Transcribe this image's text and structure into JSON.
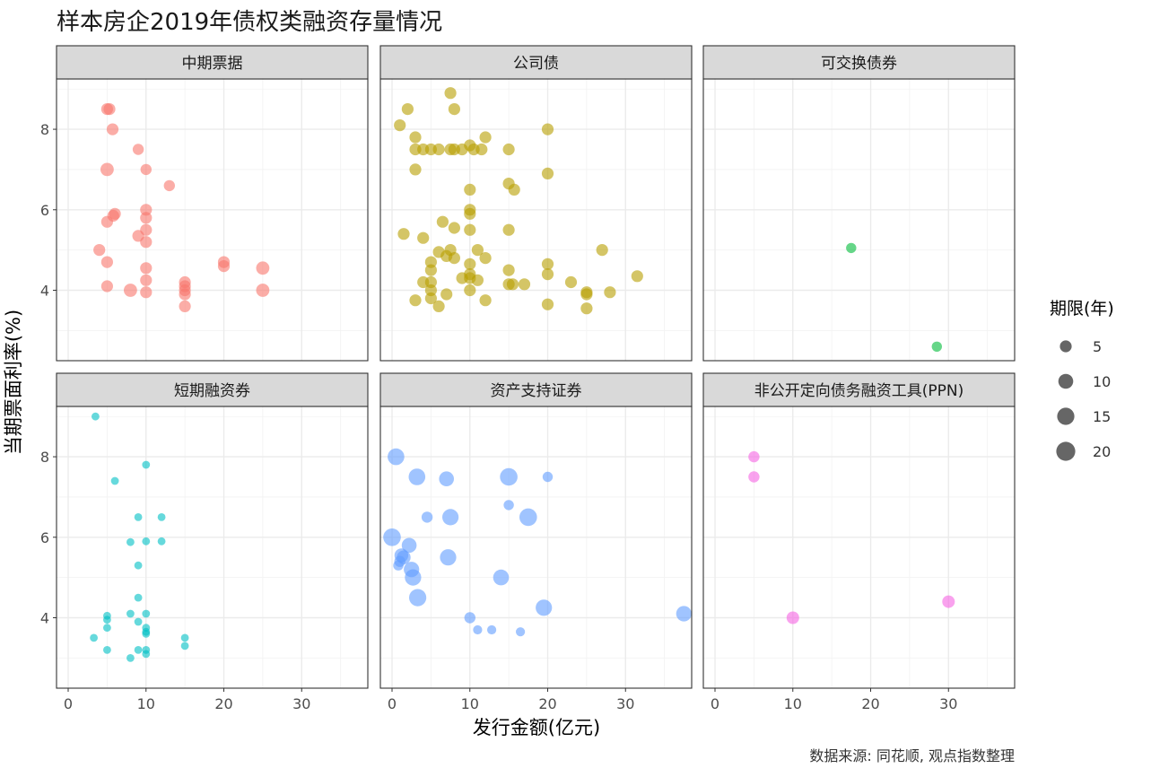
{
  "chart_data": {
    "type": "scatter",
    "title": "样本房企2019年债权类融资存量情况",
    "xlabel": "发行金额(亿元)",
    "ylabel": "当期票面利率(%)",
    "caption": "数据来源: 同花顺, 观点指数整理",
    "size_legend": {
      "title": "期限(年)",
      "values": [
        5,
        10,
        15,
        20
      ]
    },
    "x_ticks": [
      0,
      10,
      20,
      30
    ],
    "y_ticks": [
      4,
      6,
      8
    ],
    "xlim": [
      -1.5,
      38.5
    ],
    "ylim": [
      2.25,
      9.25
    ],
    "grid": true,
    "facets": [
      {
        "label": "中期票据",
        "color": "#F8766D",
        "points": [
          {
            "x": 5,
            "y": 8.5,
            "s": 5
          },
          {
            "x": 5.3,
            "y": 8.5,
            "s": 5
          },
          {
            "x": 5.7,
            "y": 8.0,
            "s": 5
          },
          {
            "x": 9,
            "y": 7.5,
            "s": 4
          },
          {
            "x": 5,
            "y": 7.0,
            "s": 7
          },
          {
            "x": 10,
            "y": 7.0,
            "s": 4
          },
          {
            "x": 13,
            "y": 6.6,
            "s": 4
          },
          {
            "x": 10,
            "y": 6.0,
            "s": 5
          },
          {
            "x": 6,
            "y": 5.9,
            "s": 5
          },
          {
            "x": 5.8,
            "y": 5.85,
            "s": 5
          },
          {
            "x": 10,
            "y": 5.8,
            "s": 5
          },
          {
            "x": 5,
            "y": 5.7,
            "s": 5
          },
          {
            "x": 10,
            "y": 5.5,
            "s": 5
          },
          {
            "x": 9,
            "y": 5.35,
            "s": 5
          },
          {
            "x": 10,
            "y": 5.2,
            "s": 5
          },
          {
            "x": 4,
            "y": 5.0,
            "s": 5
          },
          {
            "x": 5,
            "y": 4.7,
            "s": 5
          },
          {
            "x": 20,
            "y": 4.7,
            "s": 5
          },
          {
            "x": 20,
            "y": 4.6,
            "s": 5
          },
          {
            "x": 10,
            "y": 4.55,
            "s": 5
          },
          {
            "x": 25,
            "y": 4.55,
            "s": 7
          },
          {
            "x": 10,
            "y": 4.25,
            "s": 5
          },
          {
            "x": 15,
            "y": 4.2,
            "s": 5
          },
          {
            "x": 15,
            "y": 4.1,
            "s": 5
          },
          {
            "x": 5,
            "y": 4.1,
            "s": 5
          },
          {
            "x": 15,
            "y": 4.0,
            "s": 5
          },
          {
            "x": 8,
            "y": 4.0,
            "s": 7
          },
          {
            "x": 25,
            "y": 4.0,
            "s": 7
          },
          {
            "x": 10,
            "y": 3.95,
            "s": 5
          },
          {
            "x": 15,
            "y": 3.9,
            "s": 5
          },
          {
            "x": 15,
            "y": 3.6,
            "s": 5
          }
        ]
      },
      {
        "label": "公司债",
        "color": "#B79F00",
        "points": [
          {
            "x": 7.5,
            "y": 8.9,
            "s": 5
          },
          {
            "x": 2,
            "y": 8.5,
            "s": 5
          },
          {
            "x": 8,
            "y": 8.5,
            "s": 5
          },
          {
            "x": 1,
            "y": 8.1,
            "s": 5
          },
          {
            "x": 20,
            "y": 8.0,
            "s": 5
          },
          {
            "x": 3,
            "y": 7.8,
            "s": 5
          },
          {
            "x": 12,
            "y": 7.8,
            "s": 5
          },
          {
            "x": 10,
            "y": 7.6,
            "s": 5
          },
          {
            "x": 3,
            "y": 7.5,
            "s": 5
          },
          {
            "x": 4,
            "y": 7.5,
            "s": 5
          },
          {
            "x": 5,
            "y": 7.5,
            "s": 5
          },
          {
            "x": 6,
            "y": 7.5,
            "s": 5
          },
          {
            "x": 7.5,
            "y": 7.5,
            "s": 5
          },
          {
            "x": 8,
            "y": 7.5,
            "s": 5
          },
          {
            "x": 9,
            "y": 7.5,
            "s": 5
          },
          {
            "x": 10.5,
            "y": 7.5,
            "s": 5
          },
          {
            "x": 11.5,
            "y": 7.5,
            "s": 5
          },
          {
            "x": 15,
            "y": 7.5,
            "s": 5
          },
          {
            "x": 3,
            "y": 7.0,
            "s": 5
          },
          {
            "x": 20,
            "y": 6.9,
            "s": 5
          },
          {
            "x": 15,
            "y": 6.65,
            "s": 5
          },
          {
            "x": 10,
            "y": 6.5,
            "s": 5
          },
          {
            "x": 15.7,
            "y": 6.5,
            "s": 5
          },
          {
            "x": 10,
            "y": 6.0,
            "s": 5
          },
          {
            "x": 10,
            "y": 5.9,
            "s": 5
          },
          {
            "x": 6.5,
            "y": 5.7,
            "s": 5
          },
          {
            "x": 8,
            "y": 5.55,
            "s": 5
          },
          {
            "x": 10,
            "y": 5.5,
            "s": 5
          },
          {
            "x": 15,
            "y": 5.5,
            "s": 5
          },
          {
            "x": 1.5,
            "y": 5.4,
            "s": 5
          },
          {
            "x": 4,
            "y": 5.3,
            "s": 5
          },
          {
            "x": 11,
            "y": 5.0,
            "s": 5
          },
          {
            "x": 7.5,
            "y": 5.0,
            "s": 5
          },
          {
            "x": 27,
            "y": 5.0,
            "s": 5
          },
          {
            "x": 6,
            "y": 4.95,
            "s": 5
          },
          {
            "x": 7,
            "y": 4.85,
            "s": 5
          },
          {
            "x": 8,
            "y": 4.8,
            "s": 5
          },
          {
            "x": 12,
            "y": 4.8,
            "s": 5
          },
          {
            "x": 5,
            "y": 4.7,
            "s": 5
          },
          {
            "x": 10,
            "y": 4.65,
            "s": 5
          },
          {
            "x": 20,
            "y": 4.65,
            "s": 5
          },
          {
            "x": 5,
            "y": 4.5,
            "s": 5
          },
          {
            "x": 15,
            "y": 4.5,
            "s": 5
          },
          {
            "x": 10,
            "y": 4.4,
            "s": 5
          },
          {
            "x": 20,
            "y": 4.4,
            "s": 5
          },
          {
            "x": 31.5,
            "y": 4.35,
            "s": 5
          },
          {
            "x": 10,
            "y": 4.3,
            "s": 5
          },
          {
            "x": 9,
            "y": 4.3,
            "s": 5
          },
          {
            "x": 11,
            "y": 4.25,
            "s": 5
          },
          {
            "x": 5,
            "y": 4.2,
            "s": 5
          },
          {
            "x": 4,
            "y": 4.2,
            "s": 5
          },
          {
            "x": 23,
            "y": 4.2,
            "s": 5
          },
          {
            "x": 15,
            "y": 4.15,
            "s": 5
          },
          {
            "x": 15.5,
            "y": 4.15,
            "s": 5
          },
          {
            "x": 17,
            "y": 4.15,
            "s": 5
          },
          {
            "x": 10,
            "y": 4.0,
            "s": 5
          },
          {
            "x": 5,
            "y": 4.0,
            "s": 5
          },
          {
            "x": 25,
            "y": 3.95,
            "s": 5
          },
          {
            "x": 28,
            "y": 3.95,
            "s": 5
          },
          {
            "x": 25,
            "y": 3.9,
            "s": 5
          },
          {
            "x": 7,
            "y": 3.9,
            "s": 5
          },
          {
            "x": 5,
            "y": 3.8,
            "s": 5
          },
          {
            "x": 3,
            "y": 3.75,
            "s": 5
          },
          {
            "x": 12,
            "y": 3.75,
            "s": 5
          },
          {
            "x": 20,
            "y": 3.65,
            "s": 5
          },
          {
            "x": 6,
            "y": 3.6,
            "s": 5
          },
          {
            "x": 25,
            "y": 3.55,
            "s": 5
          }
        ]
      },
      {
        "label": "可交换债券",
        "color": "#00BA38",
        "points": [
          {
            "x": 17.5,
            "y": 5.05,
            "s": 3
          },
          {
            "x": 28.5,
            "y": 2.6,
            "s": 3
          }
        ]
      },
      {
        "label": "短期融资券",
        "color": "#00BFC4",
        "points": [
          {
            "x": 3.5,
            "y": 9.0,
            "s": 1
          },
          {
            "x": 10,
            "y": 7.8,
            "s": 1
          },
          {
            "x": 6,
            "y": 7.4,
            "s": 1
          },
          {
            "x": 9,
            "y": 6.5,
            "s": 1
          },
          {
            "x": 12,
            "y": 6.5,
            "s": 1
          },
          {
            "x": 8,
            "y": 5.88,
            "s": 1
          },
          {
            "x": 10,
            "y": 5.9,
            "s": 1
          },
          {
            "x": 12,
            "y": 5.9,
            "s": 1
          },
          {
            "x": 9,
            "y": 5.3,
            "s": 1
          },
          {
            "x": 9,
            "y": 4.5,
            "s": 1
          },
          {
            "x": 8,
            "y": 4.1,
            "s": 1
          },
          {
            "x": 10,
            "y": 4.1,
            "s": 1
          },
          {
            "x": 5,
            "y": 4.05,
            "s": 1
          },
          {
            "x": 5,
            "y": 3.95,
            "s": 1
          },
          {
            "x": 9,
            "y": 3.9,
            "s": 1
          },
          {
            "x": 10,
            "y": 3.75,
            "s": 1
          },
          {
            "x": 5,
            "y": 3.75,
            "s": 1
          },
          {
            "x": 10,
            "y": 3.65,
            "s": 1
          },
          {
            "x": 10,
            "y": 3.6,
            "s": 1
          },
          {
            "x": 3.3,
            "y": 3.5,
            "s": 1
          },
          {
            "x": 15,
            "y": 3.5,
            "s": 1
          },
          {
            "x": 15,
            "y": 3.3,
            "s": 1
          },
          {
            "x": 5,
            "y": 3.2,
            "s": 1
          },
          {
            "x": 9,
            "y": 3.2,
            "s": 1
          },
          {
            "x": 10,
            "y": 3.2,
            "s": 1
          },
          {
            "x": 10,
            "y": 3.1,
            "s": 1
          },
          {
            "x": 8,
            "y": 3.0,
            "s": 1
          }
        ]
      },
      {
        "label": "资产支持证券",
        "color": "#619CFF",
        "points": [
          {
            "x": 0.5,
            "y": 8.0,
            "s": 14
          },
          {
            "x": 3.2,
            "y": 7.5,
            "s": 14
          },
          {
            "x": 7,
            "y": 7.45,
            "s": 10
          },
          {
            "x": 15,
            "y": 7.5,
            "s": 16
          },
          {
            "x": 20,
            "y": 7.5,
            "s": 3
          },
          {
            "x": 15,
            "y": 6.8,
            "s": 3
          },
          {
            "x": 4.5,
            "y": 6.5,
            "s": 4
          },
          {
            "x": 7.5,
            "y": 6.5,
            "s": 13
          },
          {
            "x": 17.5,
            "y": 6.5,
            "s": 16
          },
          {
            "x": 0,
            "y": 6.0,
            "s": 16
          },
          {
            "x": 2.2,
            "y": 5.8,
            "s": 10
          },
          {
            "x": 1.2,
            "y": 5.55,
            "s": 8
          },
          {
            "x": 1.5,
            "y": 5.5,
            "s": 8
          },
          {
            "x": 7.2,
            "y": 5.5,
            "s": 13
          },
          {
            "x": 1,
            "y": 5.4,
            "s": 4
          },
          {
            "x": 0.8,
            "y": 5.3,
            "s": 3
          },
          {
            "x": 2.5,
            "y": 5.2,
            "s": 11
          },
          {
            "x": 2.7,
            "y": 5.0,
            "s": 13
          },
          {
            "x": 14,
            "y": 5.0,
            "s": 12
          },
          {
            "x": 3.3,
            "y": 4.5,
            "s": 15
          },
          {
            "x": 19.5,
            "y": 4.25,
            "s": 13
          },
          {
            "x": 37.5,
            "y": 4.1,
            "s": 11
          },
          {
            "x": 10,
            "y": 4.0,
            "s": 4
          },
          {
            "x": 11,
            "y": 3.7,
            "s": 2
          },
          {
            "x": 12.8,
            "y": 3.7,
            "s": 2
          },
          {
            "x": 16.5,
            "y": 3.65,
            "s": 2
          }
        ]
      },
      {
        "label": "非公开定向债务融资工具(PPN)",
        "color": "#F564E3",
        "points": [
          {
            "x": 5,
            "y": 8.0,
            "s": 4
          },
          {
            "x": 5,
            "y": 7.5,
            "s": 4
          },
          {
            "x": 30,
            "y": 4.4,
            "s": 6
          },
          {
            "x": 10,
            "y": 4.0,
            "s": 6
          }
        ]
      }
    ]
  }
}
